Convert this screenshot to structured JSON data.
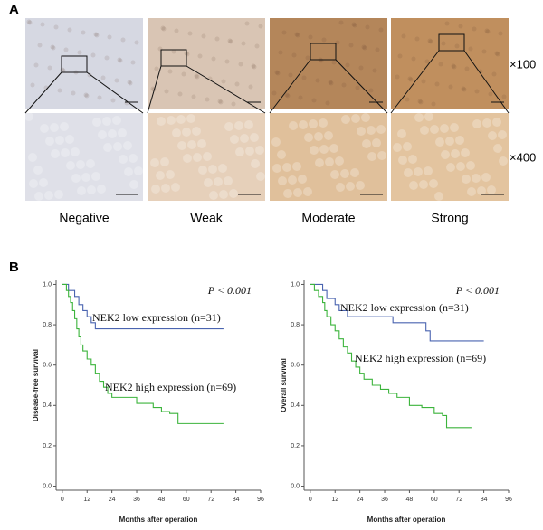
{
  "panel_a": {
    "label": "A",
    "columns": [
      "Negative",
      "Weak",
      "Moderate",
      "Strong"
    ],
    "magnifications": [
      "×100",
      "×400"
    ]
  },
  "panel_b": {
    "label": "B"
  },
  "chart_data": [
    {
      "type": "step",
      "y_label": "Disease-free survival",
      "x_label": "Months after operation",
      "annotation": "P < 0.001",
      "xlim": [
        -3,
        96
      ],
      "ylim": [
        -0.02,
        1.02
      ],
      "xticks": [
        0,
        12,
        24,
        36,
        48,
        60,
        72,
        84,
        96
      ],
      "yticks": [
        {
          "value": 0,
          "label": "0.0"
        },
        {
          "value": 0.2,
          "label": "0.2"
        },
        {
          "value": 0.4,
          "label": "0.4"
        },
        {
          "value": 0.6,
          "label": "0.6"
        },
        {
          "value": 0.8,
          "label": "0.8"
        },
        {
          "value": 1,
          "label": "1.0"
        }
      ],
      "series": [
        {
          "name": "NEK2 low expression (n=31)",
          "color": "#4a64b0",
          "x": [
            0,
            3,
            6,
            8,
            10,
            12,
            14,
            16,
            78
          ],
          "values": [
            1.0,
            0.97,
            0.94,
            0.9,
            0.87,
            0.84,
            0.81,
            0.78,
            0.78
          ]
        },
        {
          "name": "NEK2 high expression (n=69)",
          "color": "#3cb43c",
          "x": [
            0,
            2,
            3,
            4,
            5,
            6,
            7,
            8,
            9,
            10,
            12,
            14,
            16,
            18,
            20,
            22,
            24,
            36,
            44,
            48,
            52,
            56,
            78
          ],
          "values": [
            1.0,
            0.97,
            0.94,
            0.91,
            0.87,
            0.83,
            0.78,
            0.74,
            0.7,
            0.67,
            0.63,
            0.6,
            0.56,
            0.52,
            0.49,
            0.46,
            0.44,
            0.41,
            0.39,
            0.37,
            0.36,
            0.31,
            0.31
          ]
        }
      ]
    },
    {
      "type": "step",
      "y_label": "Overall survival",
      "x_label": "Months after operation",
      "annotation": "P < 0.001",
      "xlim": [
        -3,
        96
      ],
      "ylim": [
        -0.02,
        1.02
      ],
      "xticks": [
        0,
        12,
        24,
        36,
        48,
        60,
        72,
        84,
        96
      ],
      "yticks": [
        {
          "value": 0,
          "label": "0.0"
        },
        {
          "value": 0.2,
          "label": "0.2"
        },
        {
          "value": 0.4,
          "label": "0.4"
        },
        {
          "value": 0.6,
          "label": "0.6"
        },
        {
          "value": 0.8,
          "label": "0.8"
        },
        {
          "value": 1,
          "label": "1.0"
        }
      ],
      "series": [
        {
          "name": "NEK2 low expression (n=31)",
          "color": "#4a64b0",
          "x": [
            0,
            6,
            8,
            12,
            14,
            18,
            40,
            56,
            58,
            84
          ],
          "values": [
            1.0,
            0.97,
            0.93,
            0.9,
            0.87,
            0.84,
            0.81,
            0.77,
            0.72,
            0.72
          ]
        },
        {
          "name": "NEK2 high expression (n=69)",
          "color": "#3cb43c",
          "x": [
            0,
            2,
            4,
            6,
            7,
            8,
            10,
            12,
            14,
            16,
            18,
            20,
            22,
            24,
            26,
            30,
            34,
            38,
            42,
            48,
            54,
            60,
            64,
            66,
            78
          ],
          "values": [
            1.0,
            0.97,
            0.94,
            0.91,
            0.87,
            0.84,
            0.8,
            0.77,
            0.73,
            0.69,
            0.66,
            0.62,
            0.59,
            0.56,
            0.53,
            0.5,
            0.48,
            0.46,
            0.44,
            0.4,
            0.39,
            0.36,
            0.35,
            0.29,
            0.29
          ]
        }
      ]
    }
  ]
}
